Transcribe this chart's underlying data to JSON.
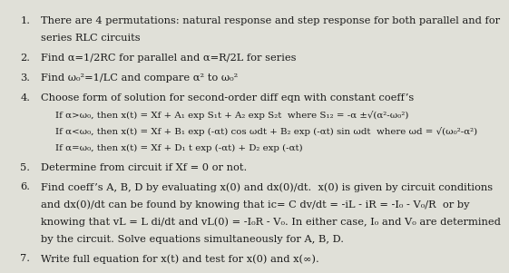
{
  "background_color": "#e0e0d8",
  "text_color": "#1a1a1a",
  "font_size": 8.2,
  "items": [
    {
      "num": "1.",
      "lines": [
        "There are 4 permutations: natural response and step response for both parallel and for",
        "series RLC circuits"
      ],
      "sub": []
    },
    {
      "num": "2.",
      "lines": [
        "Find α=1/2RC for parallel and α=R/2L for series"
      ],
      "sub": []
    },
    {
      "num": "3.",
      "lines": [
        "Find ω₀²=1/LC and compare α² to ω₀²"
      ],
      "sub": []
    },
    {
      "num": "4.",
      "lines": [
        "Choose form of solution for second-order diff eqn with constant coeff’s"
      ],
      "sub": [
        "If α>ω₀, then x(t) = Xf + A₁ exp S₁t + A₂ exp S₂t  where S₁₂ = -α ±√(α²-ω₀²)",
        "If α<ω₀, then x(t) = Xf + B₁ exp (-αt) cos ωdt + B₂ exp (-αt) sin ωdt  where ωd = √(ω₀²-α²)",
        "If α=ω₀, then x(t) = Xf + D₁ t exp (-αt) + D₂ exp (-αt)"
      ]
    },
    {
      "num": "5.",
      "lines": [
        "Determine from circuit if Xf = 0 or not."
      ],
      "sub": []
    },
    {
      "num": "6.",
      "lines": [
        "Find coeff’s A, B, D by evaluating x(0) and dx(0)/dt.  x(0) is given by circuit conditions",
        "and dx(0)/dt can be found by knowing that ic= C dv/dt = -iL - iR = -I₀ - V₀/R  or by",
        "knowing that vL = L di/dt and vL(0) = -I₀R - V₀. In either case, I₀ and V₀ are determined",
        "by the circuit. Solve equations simultaneously for A, B, D."
      ],
      "sub": []
    },
    {
      "num": "7.",
      "lines": [
        "Write full equation for x(t) and test for x(0) and x(∞)."
      ],
      "sub": []
    }
  ]
}
